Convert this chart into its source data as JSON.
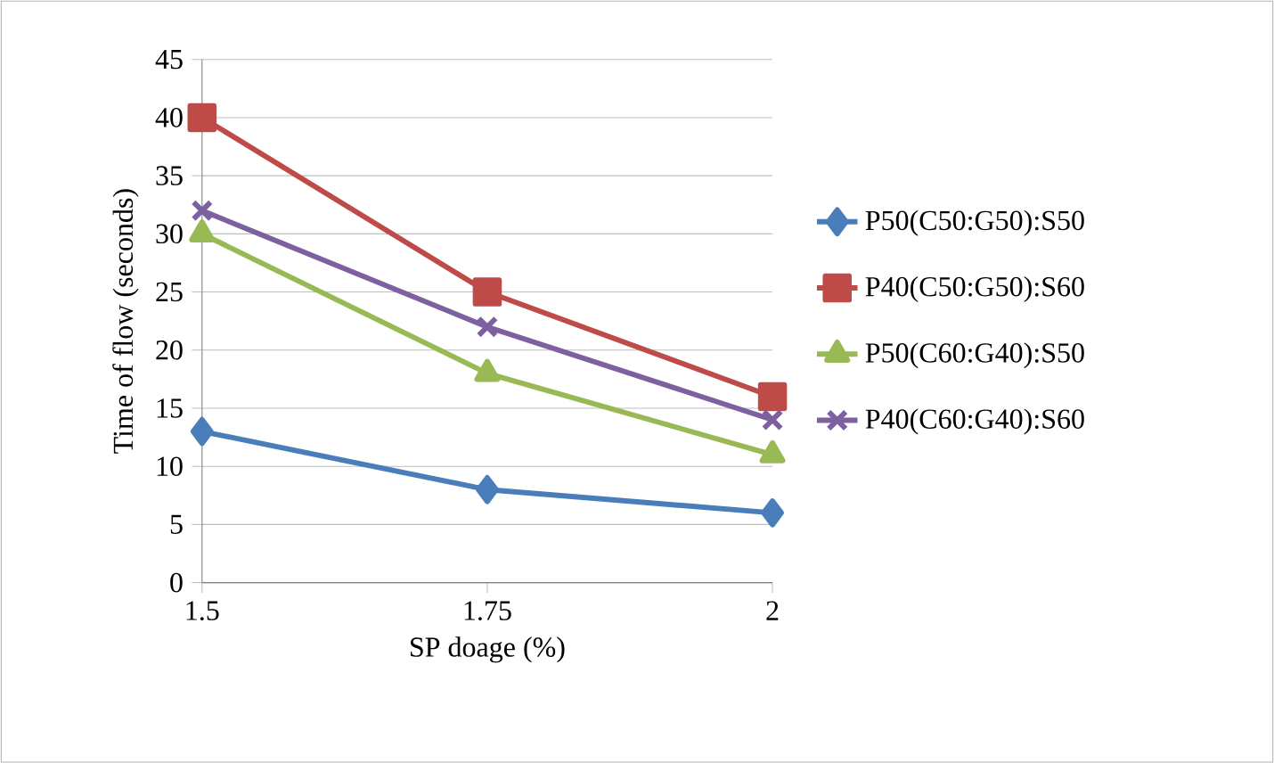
{
  "chart_data": {
    "type": "line",
    "xlabel": "SP doage (%)",
    "ylabel": "Time of flow (seconds)",
    "categories": [
      "1.5",
      "1.75",
      "2"
    ],
    "series": [
      {
        "name": "P50(C50:G50):S50",
        "color": "#4a7ebb",
        "marker": "diamond",
        "values": [
          13,
          8,
          6
        ]
      },
      {
        "name": "P40(C50:G50):S60",
        "color": "#be4b48",
        "marker": "square",
        "values": [
          40,
          25,
          16
        ]
      },
      {
        "name": "P50(C60:G40):S50",
        "color": "#98b954",
        "marker": "triangle",
        "values": [
          30,
          18,
          11
        ]
      },
      {
        "name": "P40(C60:G40):S60",
        "color": "#7d60a0",
        "marker": "cross",
        "values": [
          32,
          22,
          14
        ]
      }
    ],
    "ylim": [
      0,
      45
    ],
    "yticks": [
      0,
      5,
      10,
      15,
      20,
      25,
      30,
      35,
      40,
      45
    ],
    "grid": "y",
    "legend": "right",
    "line_style": "solid"
  }
}
